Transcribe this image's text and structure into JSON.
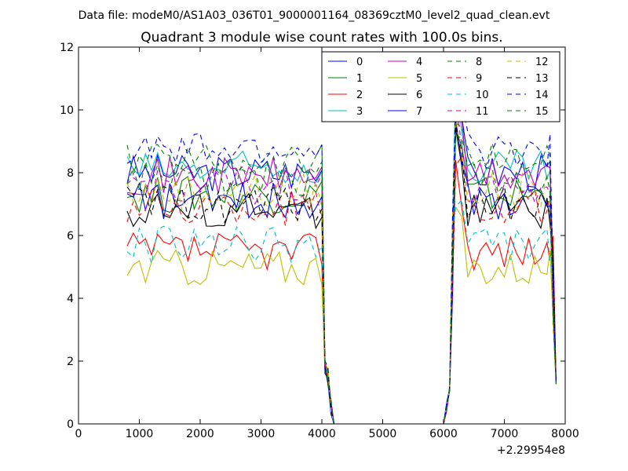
{
  "header": {
    "data_file": "Data file: modeM0/AS1A03_036T01_9000001164_08369cztM0_level2_quad_clean.evt"
  },
  "chart_data": {
    "type": "line",
    "title": "Quadrant 3 module wise count rates with 100.0s bins.",
    "xlabel": "",
    "ylabel": "",
    "x_offset_label": "+2.29954e8",
    "xlim": [
      0,
      8000
    ],
    "ylim": [
      0,
      12
    ],
    "xticks": [
      0,
      1000,
      2000,
      3000,
      4000,
      5000,
      6000,
      7000,
      8000
    ],
    "yticks": [
      0,
      2,
      4,
      6,
      8,
      10,
      12
    ],
    "x": [
      800,
      900,
      1000,
      1100,
      1200,
      1300,
      1400,
      1500,
      1600,
      1700,
      1800,
      1900,
      2000,
      2100,
      2200,
      2300,
      2400,
      2500,
      2600,
      2700,
      2800,
      2900,
      3000,
      3100,
      3200,
      3300,
      3400,
      3500,
      3600,
      3700,
      3800,
      3900,
      4000,
      4050,
      4100,
      4150,
      4200,
      4300,
      4400,
      4500,
      4600,
      4700,
      4800,
      4900,
      5000,
      5100,
      5200,
      5300,
      5400,
      5500,
      5600,
      5700,
      5800,
      5900,
      6000,
      6050,
      6100,
      6150,
      6200,
      6300,
      6400,
      6500,
      6600,
      6700,
      6800,
      6900,
      7000,
      7100,
      7200,
      7300,
      7400,
      7500,
      7600,
      7700,
      7750,
      7800,
      7850
    ],
    "legend": {
      "location": "top-right",
      "columns": 4
    },
    "series": [
      {
        "name": "0",
        "color": "#0000ff",
        "dashed": false,
        "base": 8.0
      },
      {
        "name": "1",
        "color": "#008000",
        "dashed": false,
        "base": 7.3
      },
      {
        "name": "2",
        "color": "#ff0000",
        "dashed": false,
        "base": 5.5
      },
      {
        "name": "3",
        "color": "#00bfbf",
        "dashed": false,
        "base": 8.1
      },
      {
        "name": "4",
        "color": "#bf00bf",
        "dashed": false,
        "base": 7.9
      },
      {
        "name": "5",
        "color": "#bfbf00",
        "dashed": false,
        "base": 5.0
      },
      {
        "name": "6",
        "color": "#000000",
        "dashed": false,
        "base": 6.8
      },
      {
        "name": "7",
        "color": "#0000ff",
        "dashed": false,
        "base": 7.1
      },
      {
        "name": "8",
        "color": "#008000",
        "dashed": true,
        "base": 8.4
      },
      {
        "name": "9",
        "color": "#ff0000",
        "dashed": true,
        "base": 6.9
      },
      {
        "name": "10",
        "color": "#00bfbf",
        "dashed": true,
        "base": 5.7
      },
      {
        "name": "11",
        "color": "#bf00bf",
        "dashed": true,
        "base": 7.6
      },
      {
        "name": "12",
        "color": "#bfbf00",
        "dashed": true,
        "base": 7.4
      },
      {
        "name": "13",
        "color": "#000000",
        "dashed": true,
        "base": 7.0
      },
      {
        "name": "14",
        "color": "#0000ff",
        "dashed": true,
        "base": 8.7
      },
      {
        "name": "15",
        "color": "#008000",
        "dashed": true,
        "base": 7.8
      }
    ],
    "gap_range": [
      4200,
      6000
    ],
    "spike": {
      "x": 6200,
      "values": [
        10.0,
        9.3,
        8.4,
        10.9,
        10.1,
        6.9,
        9.4,
        9.7,
        9.6,
        8.2,
        6.9,
        10.2,
        9.8,
        9.5,
        10.4,
        9.2
      ]
    },
    "edge_drop": {
      "x4050": 1.6,
      "x7850": 0.7
    }
  }
}
